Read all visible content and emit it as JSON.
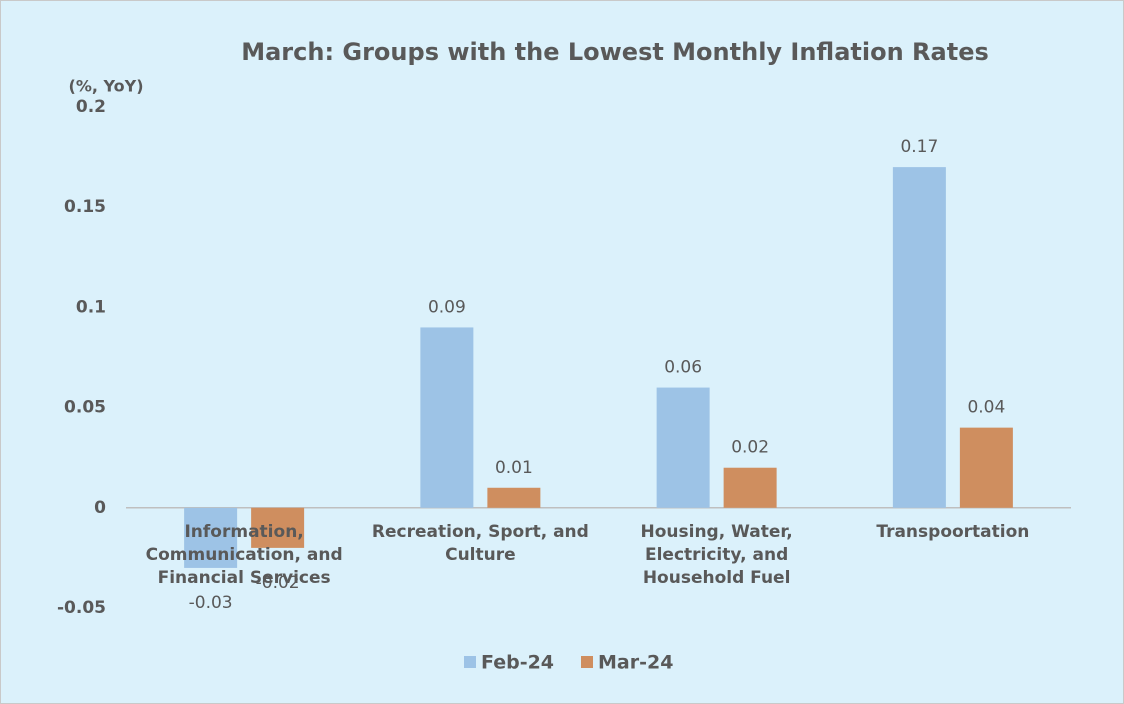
{
  "chart_data": {
    "type": "bar",
    "title": "March: Groups with the Lowest Monthly Inflation Rates",
    "y_label": "(%, YoY)",
    "categories": [
      "Information, Communication, and Financial Services",
      "Recreation, Sport, and Culture",
      "Housing, Water, Electricity, and Household Fuel",
      "Transpoortation"
    ],
    "series": [
      {
        "name": "Feb-24",
        "color": "#9dc3e6",
        "values": [
          -0.03,
          0.09,
          0.06,
          0.17
        ]
      },
      {
        "name": "Mar-24",
        "color": "#cf8e5f",
        "values": [
          -0.02,
          0.01,
          0.02,
          0.04
        ]
      }
    ],
    "ylim": [
      -0.05,
      0.2
    ],
    "yticks": [
      -0.05,
      0,
      0.05,
      0.1,
      0.15,
      0.2
    ],
    "grid": false,
    "legend": "bottom"
  }
}
